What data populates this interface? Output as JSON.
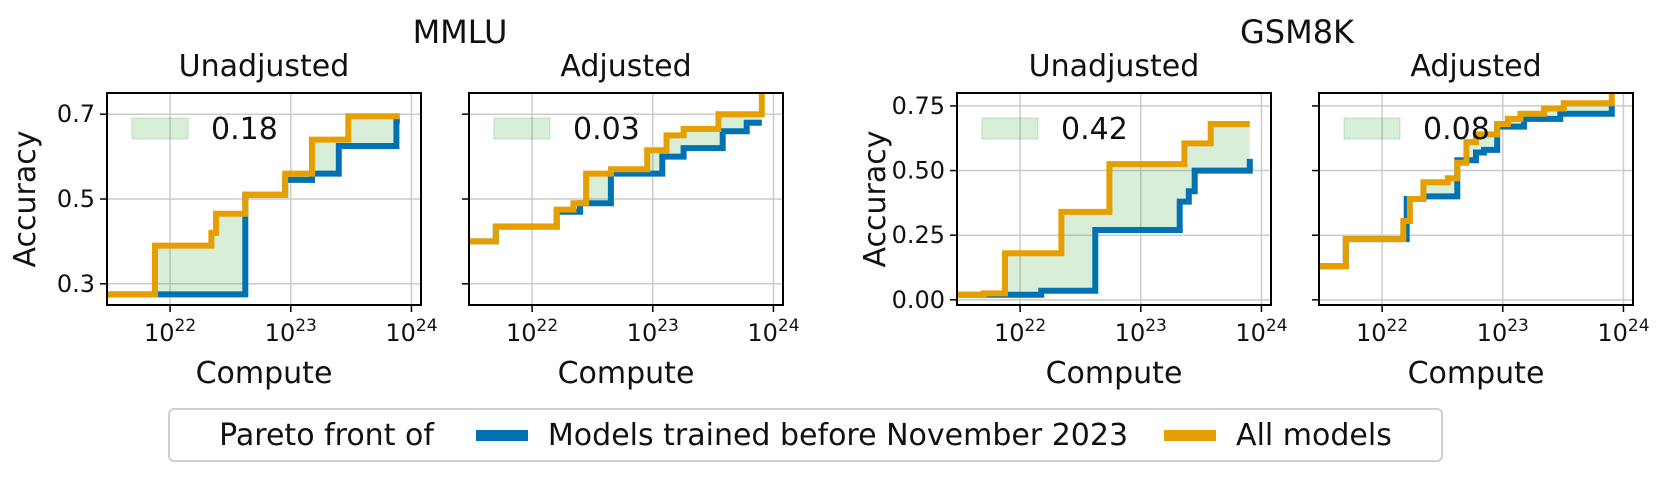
{
  "figure": {
    "group_titles": [
      "MMLU",
      "GSM8K"
    ],
    "legend_title": "Pareto front of",
    "colors": {
      "before": "#0072B2",
      "all": "#E69F00",
      "fill": "#2ca02c",
      "grid": "#cccccc",
      "axis": "#000000"
    }
  },
  "legend": {
    "lead": "Pareto front of",
    "items": [
      {
        "label": "Models trained before November 2023",
        "series": "before"
      },
      {
        "label": "All models",
        "series": "all"
      }
    ]
  },
  "chart_data": [
    {
      "type": "line",
      "group": "MMLU",
      "title": "Unadjusted",
      "xlabel": "Compute",
      "ylabel": "Accuracy",
      "xscale": "log",
      "xlim": [
        3e+21,
        1.2e+24
      ],
      "ylim": [
        0.25,
        0.75
      ],
      "xticks": [
        1e+22,
        1e+23,
        1e+24
      ],
      "xtick_labels": [
        "10^22",
        "10^23",
        "10^24"
      ],
      "yticks": [
        0.3,
        0.5,
        0.7
      ],
      "ytick_labels": [
        "0.3",
        "0.5",
        "0.7"
      ],
      "grid": true,
      "annotation": "0.18",
      "series": [
        {
          "name": "Models trained before November 2023",
          "key": "before",
          "step": true,
          "x": [
            3e+21,
            4.2e+22,
            4.2e+22,
            9e+22,
            9e+22,
            1.5e+23,
            1.5e+23,
            2.5e+23,
            2.5e+23,
            7.5e+23,
            7.5e+23,
            8e+23
          ],
          "y": [
            0.275,
            0.275,
            0.51,
            0.51,
            0.545,
            0.545,
            0.56,
            0.56,
            0.625,
            0.625,
            0.685,
            0.685
          ]
        },
        {
          "name": "All models",
          "key": "all",
          "step": true,
          "x": [
            3e+21,
            7.5e+21,
            7.5e+21,
            2.2e+22,
            2.2e+22,
            2.4e+22,
            2.4e+22,
            4.2e+22,
            4.2e+22,
            9e+22,
            9e+22,
            1.5e+23,
            1.5e+23,
            3e+23,
            3e+23,
            8e+23
          ],
          "y": [
            0.275,
            0.275,
            0.39,
            0.39,
            0.42,
            0.42,
            0.465,
            0.465,
            0.51,
            0.51,
            0.56,
            0.56,
            0.64,
            0.64,
            0.695,
            0.695
          ]
        }
      ]
    },
    {
      "type": "line",
      "group": "MMLU",
      "title": "Adjusted",
      "xlabel": "Compute",
      "ylabel": "",
      "xscale": "log",
      "xlim": [
        3e+21,
        1.2e+24
      ],
      "ylim": [
        0.25,
        0.75
      ],
      "xticks": [
        1e+22,
        1e+23,
        1e+24
      ],
      "xtick_labels": [
        "10^22",
        "10^23",
        "10^24"
      ],
      "yticks": [
        0.3,
        0.5,
        0.7
      ],
      "ytick_labels": [],
      "grid": true,
      "annotation": "0.03",
      "series": [
        {
          "name": "Models trained before November 2023",
          "key": "before",
          "step": true,
          "x": [
            3e+21,
            5e+21,
            5e+21,
            1.6e+22,
            1.6e+22,
            2.5e+22,
            2.5e+22,
            4.5e+22,
            4.5e+22,
            1.2e+23,
            1.2e+23,
            1.8e+23,
            1.8e+23,
            3.8e+23,
            3.8e+23,
            6e+23,
            6e+23,
            8e+23
          ],
          "y": [
            0.4,
            0.4,
            0.435,
            0.435,
            0.47,
            0.47,
            0.49,
            0.49,
            0.56,
            0.56,
            0.6,
            0.6,
            0.62,
            0.62,
            0.66,
            0.66,
            0.68,
            0.68
          ]
        },
        {
          "name": "All models",
          "key": "all",
          "step": true,
          "x": [
            3e+21,
            5e+21,
            5e+21,
            1.6e+22,
            1.6e+22,
            2.2e+22,
            2.2e+22,
            2.8e+22,
            2.8e+22,
            4.5e+22,
            4.5e+22,
            9e+22,
            9e+22,
            1.3e+23,
            1.3e+23,
            1.8e+23,
            1.8e+23,
            3.5e+23,
            3.5e+23,
            8e+23,
            8e+23
          ],
          "y": [
            0.4,
            0.4,
            0.435,
            0.435,
            0.475,
            0.475,
            0.49,
            0.49,
            0.56,
            0.56,
            0.57,
            0.57,
            0.615,
            0.615,
            0.65,
            0.65,
            0.665,
            0.665,
            0.7,
            0.7,
            0.75
          ]
        }
      ]
    },
    {
      "type": "line",
      "group": "GSM8K",
      "title": "Unadjusted",
      "xlabel": "Compute",
      "ylabel": "Accuracy",
      "xscale": "log",
      "xlim": [
        3e+21,
        1.2e+24
      ],
      "ylim": [
        -0.02,
        0.8
      ],
      "xticks": [
        1e+22,
        1e+23,
        1e+24
      ],
      "xtick_labels": [
        "10^22",
        "10^23",
        "10^24"
      ],
      "yticks": [
        0,
        0.25,
        0.5,
        0.75
      ],
      "ytick_labels": [
        "0.00",
        "0.25",
        "0.50",
        "0.75"
      ],
      "grid": true,
      "annotation": "0.42",
      "series": [
        {
          "name": "Models trained before November 2023",
          "key": "before",
          "step": true,
          "x": [
            3e+21,
            1.5e+22,
            1.5e+22,
            4.2e+22,
            4.2e+22,
            2.1e+23,
            2.1e+23,
            2.5e+23,
            2.5e+23,
            2.8e+23,
            2.8e+23,
            8e+23,
            8e+23
          ],
          "y": [
            0.02,
            0.02,
            0.035,
            0.035,
            0.27,
            0.27,
            0.38,
            0.38,
            0.42,
            0.42,
            0.5,
            0.5,
            0.545
          ]
        },
        {
          "name": "All models",
          "key": "all",
          "step": true,
          "x": [
            3e+21,
            5e+21,
            5e+21,
            7.5e+21,
            7.5e+21,
            2.2e+22,
            2.2e+22,
            5.5e+22,
            5.5e+22,
            2.3e+23,
            2.3e+23,
            3.8e+23,
            3.8e+23,
            8e+23
          ],
          "y": [
            0.02,
            0.02,
            0.025,
            0.025,
            0.18,
            0.18,
            0.34,
            0.34,
            0.525,
            0.525,
            0.605,
            0.605,
            0.68,
            0.68
          ]
        }
      ]
    },
    {
      "type": "line",
      "group": "GSM8K",
      "title": "Adjusted",
      "xlabel": "Compute",
      "ylabel": "",
      "xscale": "log",
      "xlim": [
        3e+21,
        1.2e+24
      ],
      "ylim": [
        -0.02,
        0.8
      ],
      "xticks": [
        1e+22,
        1e+23,
        1e+24
      ],
      "xtick_labels": [
        "10^22",
        "10^23",
        "10^24"
      ],
      "yticks": [
        0,
        0.25,
        0.5,
        0.75
      ],
      "ytick_labels": [],
      "grid": true,
      "annotation": "0.08",
      "series": [
        {
          "name": "Models trained before November 2023",
          "key": "before",
          "step": true,
          "x": [
            3e+21,
            5e+21,
            5e+21,
            1.6e+22,
            1.6e+22,
            2.2e+22,
            2.2e+22,
            4.2e+22,
            4.2e+22,
            6e+22,
            6e+22,
            7e+22,
            7e+22,
            9e+22,
            9e+22,
            1.5e+23,
            1.5e+23,
            3e+23,
            3e+23,
            8e+23,
            8e+23
          ],
          "y": [
            0.13,
            0.13,
            0.235,
            0.235,
            0.39,
            0.39,
            0.4,
            0.4,
            0.54,
            0.54,
            0.57,
            0.57,
            0.58,
            0.58,
            0.67,
            0.67,
            0.7,
            0.7,
            0.72,
            0.72,
            0.76
          ]
        },
        {
          "name": "All models",
          "key": "all",
          "step": true,
          "x": [
            3e+21,
            5e+21,
            5e+21,
            1.5e+22,
            1.5e+22,
            1.7e+22,
            1.7e+22,
            2.2e+22,
            2.2e+22,
            3.5e+22,
            3.5e+22,
            4.2e+22,
            4.2e+22,
            5e+22,
            5e+22,
            6e+22,
            6e+22,
            9e+22,
            9e+22,
            1.1e+23,
            1.1e+23,
            1.4e+23,
            1.4e+23,
            2.2e+23,
            2.2e+23,
            3.2e+23,
            3.2e+23,
            8e+23,
            8e+23
          ],
          "y": [
            0.13,
            0.13,
            0.235,
            0.235,
            0.305,
            0.305,
            0.39,
            0.39,
            0.455,
            0.455,
            0.47,
            0.47,
            0.53,
            0.53,
            0.61,
            0.61,
            0.64,
            0.64,
            0.68,
            0.68,
            0.7,
            0.7,
            0.72,
            0.72,
            0.74,
            0.74,
            0.76,
            0.76,
            0.8
          ]
        }
      ]
    }
  ]
}
